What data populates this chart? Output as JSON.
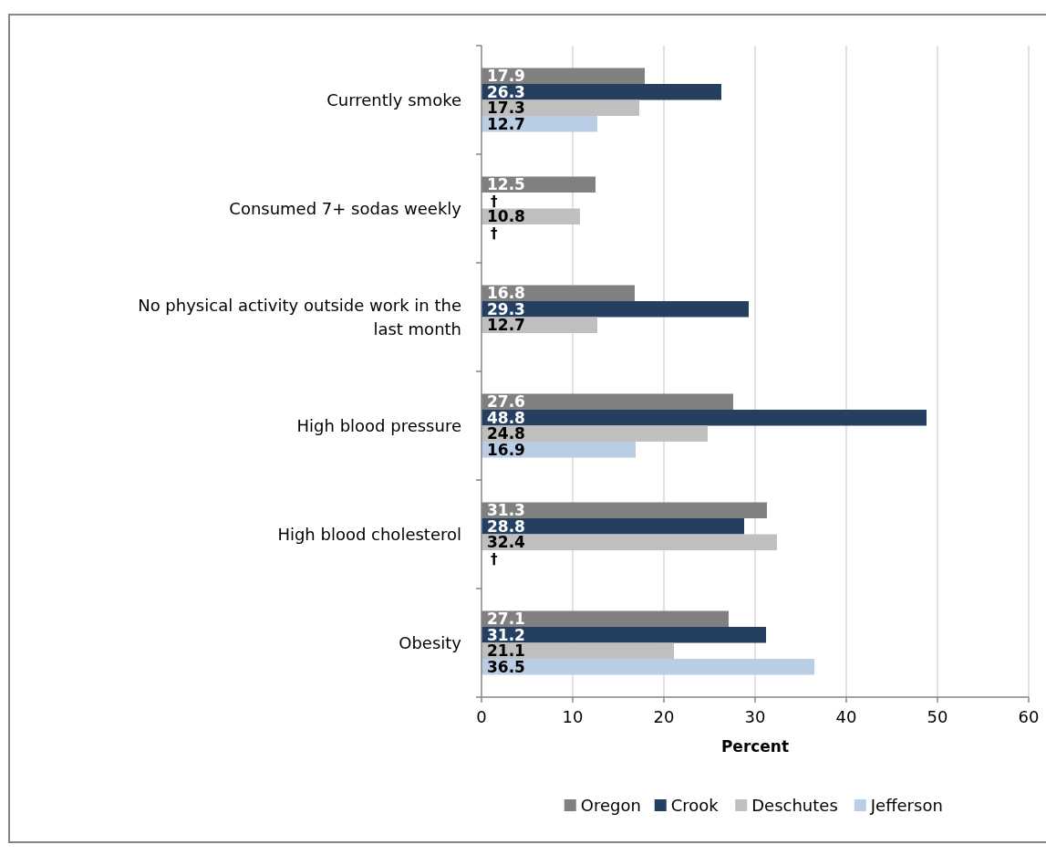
{
  "chart_data": {
    "type": "bar",
    "orientation": "horizontal",
    "xlabel": "Percent",
    "categories": [
      "Currently smoke",
      "Consumed 7+ sodas weekly",
      "No physical activity outside work in the last month",
      "High blood pressure",
      "High blood cholesterol",
      "Obesity"
    ],
    "series": [
      {
        "name": "Oregon",
        "color": "#808080",
        "values": [
          17.9,
          12.5,
          16.8,
          27.6,
          31.3,
          27.1
        ],
        "value_labels": [
          "17.9",
          "12.5",
          "16.8",
          "27.6",
          "31.3",
          "27.1"
        ]
      },
      {
        "name": "Crook",
        "color": "#243f60",
        "values": [
          26.3,
          null,
          29.3,
          48.8,
          28.8,
          31.2
        ],
        "value_labels": [
          "26.3",
          "†",
          "29.3",
          "48.8",
          "28.8",
          "31.2"
        ]
      },
      {
        "name": "Deschutes",
        "color": "#bfbfbf",
        "values": [
          17.3,
          10.8,
          12.7,
          24.8,
          32.4,
          21.1
        ],
        "value_labels": [
          "17.3",
          "10.8",
          "12.7",
          "24.8",
          "32.4",
          "21.1"
        ]
      },
      {
        "name": "Jefferson",
        "color": "#b9cde5",
        "values": [
          12.7,
          null,
          null,
          16.9,
          null,
          36.5
        ],
        "value_labels": [
          "12.7",
          "†",
          null,
          "16.9",
          "†",
          "36.5"
        ]
      }
    ],
    "xlim": [
      0,
      60
    ],
    "xticks": [
      0,
      10,
      20,
      30,
      40,
      50,
      60
    ],
    "grid": "x",
    "legend": "bottom"
  }
}
